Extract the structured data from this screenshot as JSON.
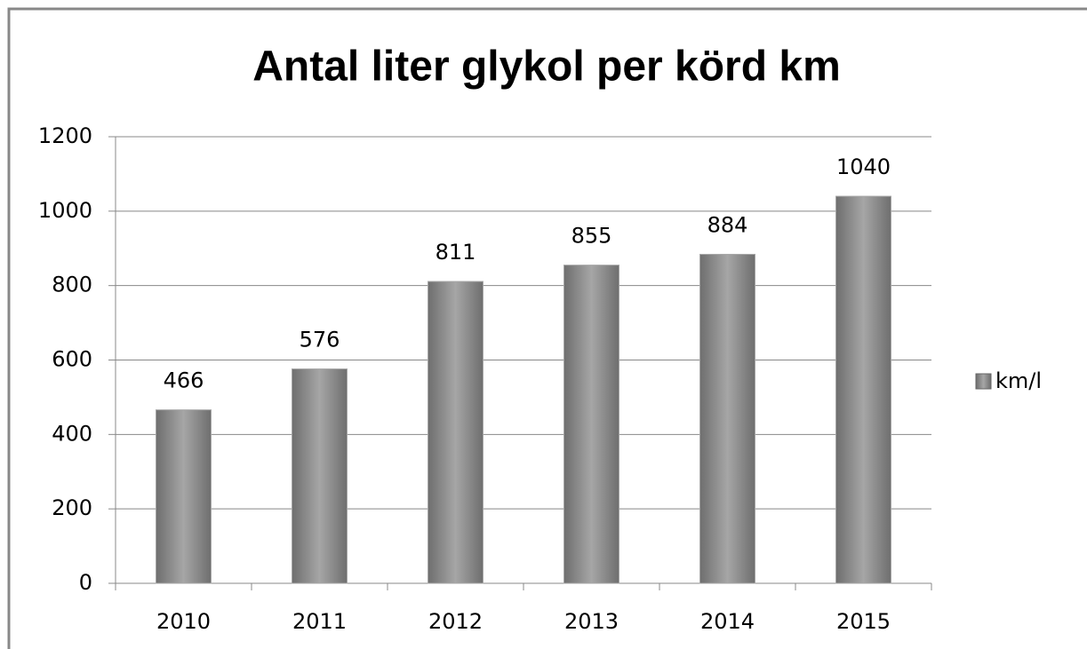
{
  "chart_data": {
    "type": "bar",
    "title": "Antal liter glykol per körd km",
    "categories": [
      "2010",
      "2011",
      "2012",
      "2013",
      "2014",
      "2015"
    ],
    "series": [
      {
        "name": "km/l",
        "color": "#a6a6a6",
        "values": [
          466,
          576,
          811,
          855,
          884,
          1040
        ]
      }
    ],
    "ylim": [
      0,
      1200
    ],
    "yticks": [
      0,
      200,
      400,
      600,
      800,
      1000,
      1200
    ],
    "grid": true,
    "legend": "right"
  }
}
